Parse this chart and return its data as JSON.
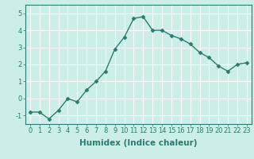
{
  "x": [
    0,
    1,
    2,
    3,
    4,
    5,
    6,
    7,
    8,
    9,
    10,
    11,
    12,
    13,
    14,
    15,
    16,
    17,
    18,
    19,
    20,
    21,
    22,
    23
  ],
  "y": [
    -0.8,
    -0.8,
    -1.2,
    -0.7,
    0.0,
    -0.2,
    0.5,
    1.0,
    1.6,
    2.9,
    3.6,
    4.7,
    4.8,
    4.0,
    4.0,
    3.7,
    3.5,
    3.2,
    2.7,
    2.4,
    1.9,
    1.6,
    2.0,
    2.1
  ],
  "xlabel": "Humidex (Indice chaleur)",
  "line_color": "#2a7d6e",
  "marker": "D",
  "marker_size": 2.5,
  "background_color": "#cceee8",
  "grid_color": "#ffffff",
  "ylim": [
    -1.5,
    5.5
  ],
  "xlim": [
    -0.5,
    23.5
  ],
  "yticks": [
    -1,
    0,
    1,
    2,
    3,
    4,
    5
  ],
  "xticks": [
    0,
    1,
    2,
    3,
    4,
    5,
    6,
    7,
    8,
    9,
    10,
    11,
    12,
    13,
    14,
    15,
    16,
    17,
    18,
    19,
    20,
    21,
    22,
    23
  ],
  "tick_color": "#2a7d6e",
  "spine_color": "#2a7d6e",
  "xlabel_fontsize": 7.5,
  "tick_fontsize": 6.0,
  "linewidth": 1.0
}
